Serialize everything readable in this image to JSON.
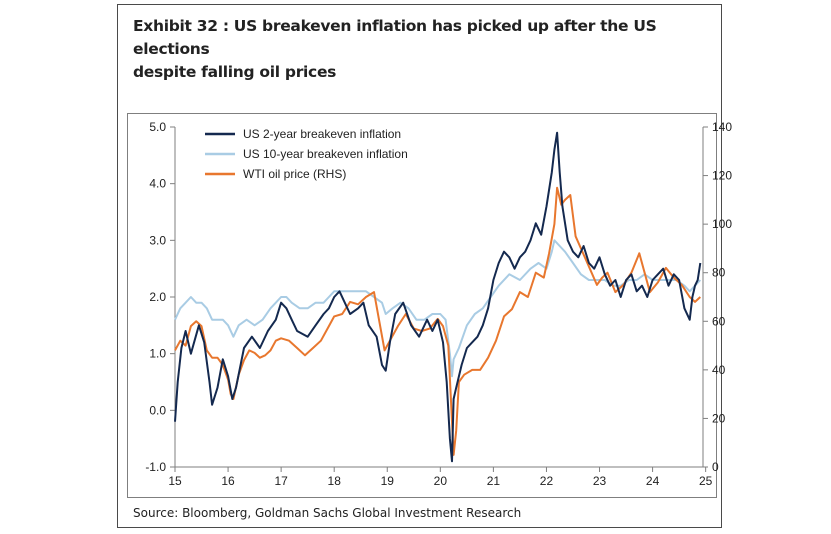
{
  "title_line1": "Exhibit 32 : US breakeven inflation has picked up after the US elections",
  "title_line2": "despite falling oil prices",
  "source": "Source: Bloomberg, Goldman Sachs Global Investment Research",
  "colors": {
    "be2y": "#14294f",
    "be10y": "#a9cce4",
    "wti": "#e8772e"
  },
  "chart_data": {
    "type": "line",
    "title": "US breakeven inflation has picked up after the US elections despite falling oil prices",
    "xlabel": "",
    "ylabel_left": "",
    "ylabel_right": "",
    "xlim": [
      2015.0,
      2024.95
    ],
    "ylim_left": [
      -1.0,
      5.0
    ],
    "ylim_right": [
      0,
      140
    ],
    "x_ticks": [
      2015,
      2016,
      2017,
      2018,
      2019,
      2020,
      2021,
      2022,
      2023,
      2024,
      2025
    ],
    "x_tick_labels": [
      "15",
      "16",
      "17",
      "18",
      "19",
      "20",
      "21",
      "22",
      "23",
      "24",
      "25"
    ],
    "y_left_ticks": [
      -1.0,
      0.0,
      1.0,
      2.0,
      3.0,
      4.0,
      5.0
    ],
    "y_left_tick_labels": [
      "-1.0",
      "0.0",
      "1.0",
      "2.0",
      "3.0",
      "4.0",
      "5.0"
    ],
    "y_right_ticks": [
      0,
      20,
      40,
      60,
      80,
      100,
      120,
      140
    ],
    "y_right_tick_labels": [
      "0",
      "20",
      "40",
      "60",
      "80",
      "100",
      "120",
      "140"
    ],
    "grid": false,
    "legend_position": "top-left",
    "series": [
      {
        "name": "US 2-year breakeven inflation",
        "axis": "left",
        "x": [
          2015.0,
          2015.05,
          2015.12,
          2015.2,
          2015.3,
          2015.45,
          2015.55,
          2015.65,
          2015.7,
          2015.8,
          2015.9,
          2016.0,
          2016.08,
          2016.15,
          2016.3,
          2016.45,
          2016.6,
          2016.75,
          2016.9,
          2017.0,
          2017.1,
          2017.2,
          2017.3,
          2017.5,
          2017.65,
          2017.8,
          2017.9,
          2018.0,
          2018.1,
          2018.2,
          2018.3,
          2018.45,
          2018.55,
          2018.65,
          2018.8,
          2018.9,
          2018.97,
          2019.05,
          2019.15,
          2019.3,
          2019.45,
          2019.6,
          2019.75,
          2019.85,
          2019.95,
          2020.05,
          2020.12,
          2020.18,
          2020.22,
          2020.25,
          2020.3,
          2020.4,
          2020.5,
          2020.6,
          2020.7,
          2020.8,
          2020.9,
          2021.0,
          2021.1,
          2021.2,
          2021.3,
          2021.4,
          2021.5,
          2021.6,
          2021.7,
          2021.8,
          2021.9,
          2022.0,
          2022.1,
          2022.15,
          2022.2,
          2022.25,
          2022.3,
          2022.4,
          2022.5,
          2022.6,
          2022.7,
          2022.8,
          2022.9,
          2023.0,
          2023.1,
          2023.2,
          2023.3,
          2023.4,
          2023.5,
          2023.6,
          2023.7,
          2023.8,
          2023.9,
          2024.0,
          2024.1,
          2024.2,
          2024.3,
          2024.4,
          2024.5,
          2024.6,
          2024.7,
          2024.75,
          2024.8,
          2024.85,
          2024.9
        ],
        "values": [
          -0.2,
          0.5,
          1.1,
          1.4,
          1.0,
          1.5,
          1.2,
          0.5,
          0.1,
          0.4,
          0.9,
          0.6,
          0.2,
          0.4,
          1.1,
          1.3,
          1.1,
          1.4,
          1.6,
          1.9,
          1.8,
          1.6,
          1.4,
          1.3,
          1.5,
          1.7,
          1.8,
          2.0,
          2.1,
          1.9,
          1.7,
          1.8,
          1.9,
          1.5,
          1.3,
          0.8,
          0.7,
          1.2,
          1.7,
          1.9,
          1.5,
          1.3,
          1.6,
          1.4,
          1.6,
          1.2,
          0.5,
          -0.5,
          -0.9,
          0.2,
          0.4,
          0.8,
          1.1,
          1.2,
          1.3,
          1.5,
          1.8,
          2.3,
          2.6,
          2.8,
          2.7,
          2.5,
          2.7,
          2.8,
          3.0,
          3.3,
          3.1,
          3.6,
          4.2,
          4.6,
          4.9,
          4.2,
          3.6,
          3.0,
          2.8,
          2.7,
          2.9,
          2.6,
          2.5,
          2.7,
          2.4,
          2.2,
          2.3,
          2.0,
          2.3,
          2.4,
          2.1,
          2.2,
          2.0,
          2.3,
          2.4,
          2.5,
          2.2,
          2.4,
          2.3,
          1.8,
          1.6,
          2.0,
          2.2,
          2.3,
          2.6
        ]
      },
      {
        "name": "US 10-year breakeven inflation",
        "axis": "left",
        "x": [
          2015.0,
          2015.1,
          2015.2,
          2015.3,
          2015.4,
          2015.5,
          2015.6,
          2015.7,
          2015.8,
          2015.9,
          2016.0,
          2016.1,
          2016.2,
          2016.35,
          2016.5,
          2016.65,
          2016.8,
          2016.9,
          2017.0,
          2017.1,
          2017.2,
          2017.35,
          2017.5,
          2017.65,
          2017.8,
          2017.9,
          2018.0,
          2018.1,
          2018.2,
          2018.4,
          2018.6,
          2018.75,
          2018.9,
          2018.97,
          2019.1,
          2019.25,
          2019.4,
          2019.55,
          2019.7,
          2019.85,
          2020.0,
          2020.1,
          2020.18,
          2020.22,
          2020.25,
          2020.35,
          2020.5,
          2020.65,
          2020.8,
          2020.95,
          2021.1,
          2021.3,
          2021.5,
          2021.7,
          2021.85,
          2022.0,
          2022.1,
          2022.15,
          2022.25,
          2022.35,
          2022.5,
          2022.65,
          2022.8,
          2022.95,
          2023.1,
          2023.25,
          2023.4,
          2023.55,
          2023.7,
          2023.85,
          2024.0,
          2024.15,
          2024.3,
          2024.45,
          2024.6,
          2024.7,
          2024.8,
          2024.9
        ],
        "values": [
          1.6,
          1.8,
          1.9,
          2.0,
          1.9,
          1.9,
          1.8,
          1.6,
          1.6,
          1.6,
          1.5,
          1.3,
          1.5,
          1.6,
          1.5,
          1.6,
          1.8,
          1.9,
          2.0,
          2.0,
          1.9,
          1.8,
          1.8,
          1.9,
          1.9,
          2.0,
          2.1,
          2.1,
          2.1,
          2.1,
          2.1,
          2.0,
          1.9,
          1.7,
          1.8,
          1.9,
          1.8,
          1.6,
          1.6,
          1.7,
          1.7,
          1.6,
          1.0,
          0.6,
          0.9,
          1.1,
          1.5,
          1.7,
          1.8,
          2.0,
          2.2,
          2.4,
          2.3,
          2.5,
          2.6,
          2.5,
          2.8,
          3.0,
          2.9,
          2.8,
          2.6,
          2.4,
          2.3,
          2.3,
          2.3,
          2.2,
          2.2,
          2.3,
          2.3,
          2.4,
          2.3,
          2.3,
          2.3,
          2.3,
          2.2,
          2.1,
          2.2,
          2.3
        ]
      },
      {
        "name": "WTI oil price (RHS)",
        "axis": "right",
        "x": [
          2015.0,
          2015.1,
          2015.2,
          2015.3,
          2015.4,
          2015.5,
          2015.6,
          2015.7,
          2015.8,
          2015.9,
          2016.0,
          2016.05,
          2016.1,
          2016.2,
          2016.3,
          2016.4,
          2016.5,
          2016.6,
          2016.7,
          2016.8,
          2016.9,
          2017.0,
          2017.15,
          2017.3,
          2017.45,
          2017.6,
          2017.75,
          2017.9,
          2018.0,
          2018.15,
          2018.3,
          2018.45,
          2018.6,
          2018.75,
          2018.85,
          2018.95,
          2019.05,
          2019.2,
          2019.35,
          2019.5,
          2019.65,
          2019.8,
          2019.95,
          2020.05,
          2020.15,
          2020.2,
          2020.25,
          2020.3,
          2020.35,
          2020.45,
          2020.6,
          2020.75,
          2020.9,
          2021.05,
          2021.2,
          2021.35,
          2021.5,
          2021.65,
          2021.8,
          2021.95,
          2022.05,
          2022.15,
          2022.2,
          2022.28,
          2022.35,
          2022.45,
          2022.55,
          2022.65,
          2022.75,
          2022.85,
          2022.95,
          2023.05,
          2023.15,
          2023.3,
          2023.45,
          2023.6,
          2023.75,
          2023.85,
          2023.95,
          2024.1,
          2024.25,
          2024.4,
          2024.55,
          2024.7,
          2024.8,
          2024.9
        ],
        "values": [
          48,
          52,
          50,
          58,
          60,
          58,
          48,
          45,
          45,
          42,
          36,
          30,
          28,
          38,
          44,
          48,
          47,
          45,
          46,
          48,
          52,
          53,
          52,
          49,
          46,
          49,
          52,
          58,
          62,
          63,
          68,
          67,
          70,
          72,
          60,
          48,
          52,
          58,
          63,
          57,
          56,
          57,
          61,
          58,
          50,
          28,
          5,
          15,
          35,
          38,
          40,
          40,
          45,
          52,
          62,
          65,
          72,
          70,
          80,
          78,
          88,
          100,
          115,
          108,
          110,
          112,
          95,
          90,
          85,
          80,
          75,
          78,
          80,
          72,
          75,
          80,
          88,
          80,
          72,
          76,
          82,
          78,
          75,
          70,
          68,
          70
        ]
      }
    ]
  }
}
